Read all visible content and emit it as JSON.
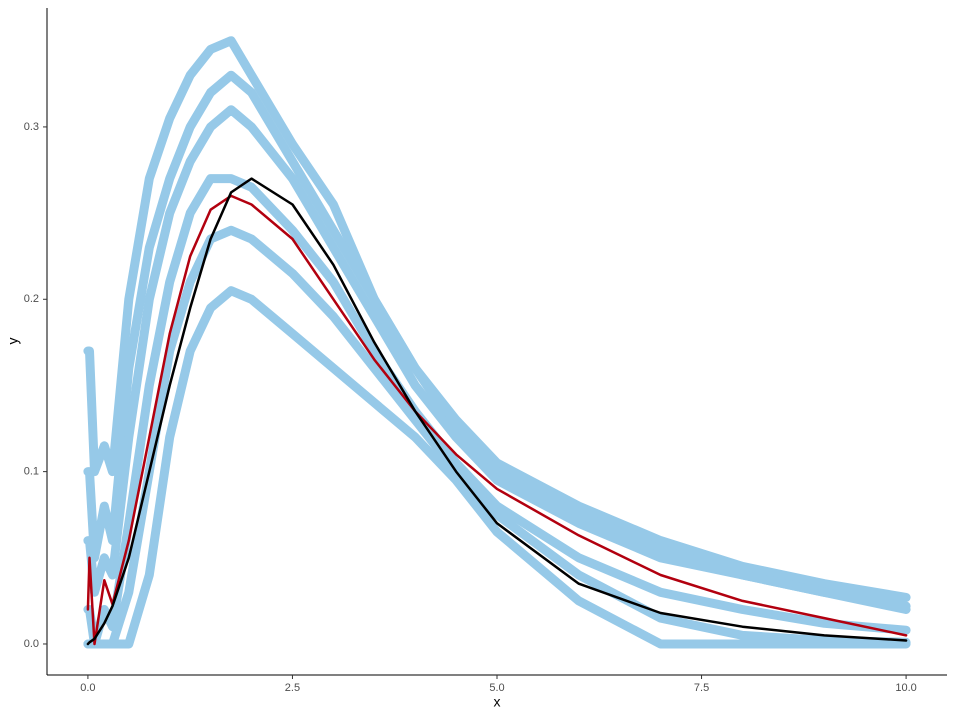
{
  "chart_data": {
    "type": "line",
    "x_label": "x",
    "y_label": "y",
    "x": [
      0,
      0.02,
      0.08,
      0.2,
      0.3,
      0.5,
      0.75,
      1,
      1.25,
      1.5,
      1.75,
      2,
      2.5,
      3,
      3.5,
      4,
      4.5,
      5,
      6,
      7,
      8,
      9,
      10
    ],
    "series": [
      {
        "color": "#96c9e8",
        "values": [
          0.17,
          0.17,
          0.1,
          0.115,
          0.1,
          0.2,
          0.27,
          0.305,
          0.33,
          0.345,
          0.35,
          0.33,
          0.29,
          0.255,
          0.2,
          0.16,
          0.13,
          0.105,
          0.08,
          0.06,
          0.045,
          0.035,
          0.027
        ]
      },
      {
        "color": "#96c9e8",
        "values": [
          0.1,
          0.1,
          0.05,
          0.08,
          0.06,
          0.16,
          0.23,
          0.27,
          0.3,
          0.32,
          0.33,
          0.32,
          0.28,
          0.24,
          0.2,
          0.16,
          0.125,
          0.1,
          0.075,
          0.055,
          0.04,
          0.03,
          0.022
        ]
      },
      {
        "color": "#96c9e8",
        "values": [
          0.06,
          0.06,
          0.03,
          0.05,
          0.04,
          0.12,
          0.2,
          0.25,
          0.28,
          0.3,
          0.31,
          0.3,
          0.27,
          0.23,
          0.19,
          0.15,
          0.12,
          0.095,
          0.07,
          0.05,
          0.04,
          0.03,
          0.02
        ]
      },
      {
        "color": "#96c9e8",
        "values": [
          0.02,
          0.02,
          0,
          0.02,
          0.01,
          0.07,
          0.15,
          0.21,
          0.25,
          0.27,
          0.27,
          0.265,
          0.24,
          0.21,
          0.17,
          0.135,
          0.105,
          0.08,
          0.05,
          0.03,
          0.02,
          0.012,
          0.008
        ]
      },
      {
        "color": "#96c9e8",
        "values": [
          0,
          0,
          0,
          0,
          0,
          0.03,
          0.1,
          0.17,
          0.21,
          0.235,
          0.24,
          0.235,
          0.215,
          0.19,
          0.16,
          0.13,
          0.1,
          0.075,
          0.04,
          0.015,
          0.005,
          0.002,
          0.001
        ]
      },
      {
        "color": "#96c9e8",
        "values": [
          0,
          0,
          0,
          0,
          0,
          0,
          0.04,
          0.12,
          0.17,
          0.195,
          0.205,
          0.2,
          0.18,
          0.16,
          0.14,
          0.12,
          0.095,
          0.065,
          0.025,
          0,
          0,
          0,
          0
        ]
      },
      {
        "color": "#b2000f",
        "values": [
          0.02,
          0.05,
          0,
          0.037,
          0.023,
          0.06,
          0.12,
          0.18,
          0.225,
          0.252,
          0.26,
          0.255,
          0.235,
          0.2,
          0.165,
          0.135,
          0.11,
          0.09,
          0.063,
          0.04,
          0.025,
          0.015,
          0.005
        ]
      },
      {
        "color": "#000000",
        "values": [
          0,
          0.001,
          0.003,
          0.012,
          0.022,
          0.05,
          0.1,
          0.15,
          0.195,
          0.235,
          0.262,
          0.27,
          0.255,
          0.22,
          0.175,
          0.135,
          0.1,
          0.07,
          0.035,
          0.018,
          0.01,
          0.005,
          0.002
        ]
      }
    ],
    "xlim": [
      -0.5,
      10.5
    ],
    "ylim": [
      -0.018,
      0.369
    ],
    "xticks": [
      {
        "value": 0,
        "label": "0.0"
      },
      2.5,
      {
        "value": 5,
        "label": "5.0"
      },
      7.5,
      {
        "value": 10,
        "label": "10.0"
      }
    ],
    "yticks": [
      {
        "value": 0,
        "label": "0.0"
      },
      0.1,
      0.2,
      0.3
    ],
    "grid": false
  }
}
